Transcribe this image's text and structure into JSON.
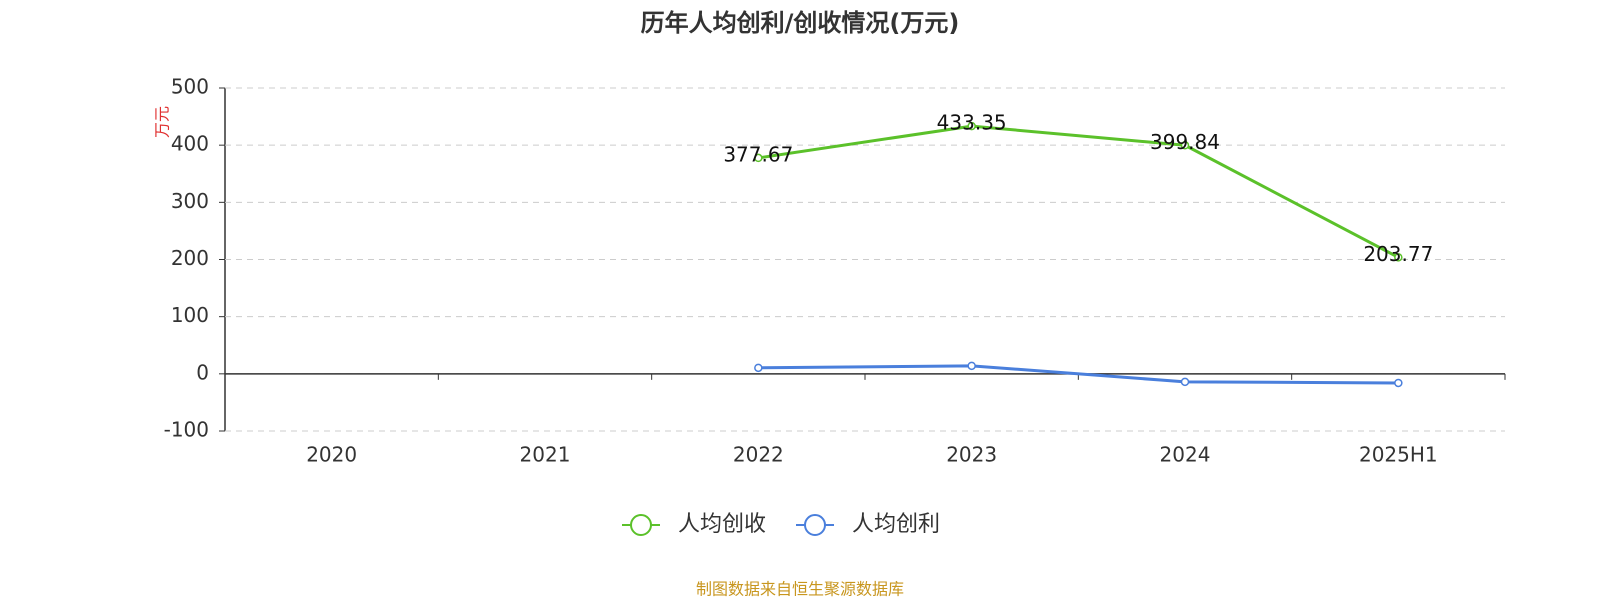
{
  "chart_data": {
    "type": "line",
    "title": "历年人均创利/创收情况(万元)",
    "y_label": "万元",
    "categories": [
      "2020",
      "2021",
      "2022",
      "2023",
      "2024",
      "2025H1"
    ],
    "series": [
      {
        "name": "人均创收",
        "color": "#5bc12a",
        "values": [
          null,
          null,
          377.67,
          433.35,
          399.84,
          203.77
        ],
        "show_labels": true
      },
      {
        "name": "人均创利",
        "color": "#4a7fdc",
        "values": [
          null,
          null,
          10.5,
          14,
          -14,
          -16
        ],
        "show_labels": false
      }
    ],
    "ylim": [
      -100,
      500
    ],
    "yticks": [
      -100,
      0,
      100,
      200,
      300,
      400,
      500
    ],
    "grid": true,
    "legend": "bottom",
    "source": "制图数据来自恒生聚源数据库"
  }
}
